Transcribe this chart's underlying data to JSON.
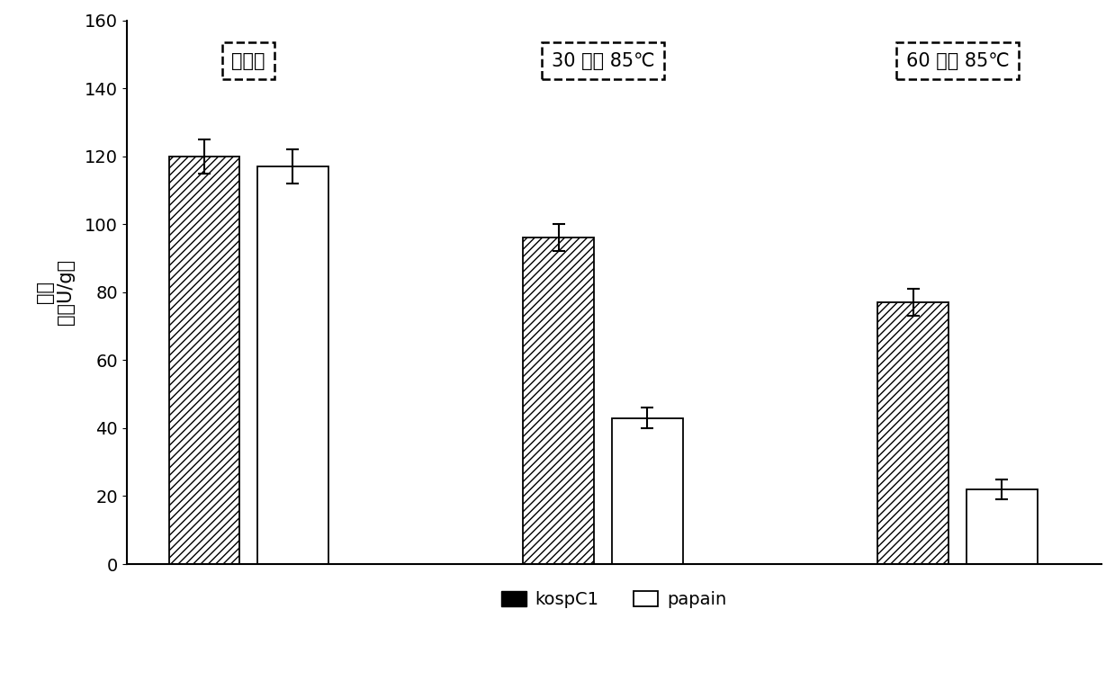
{
  "groups": [
    "未加热",
    "30 分钟 85℃",
    "60 分钟 85℃"
  ],
  "ylabel_parts": [
    "酶活（万U/g）"
  ],
  "ylabel_line1": "酶活",
  "ylabel_line2": "（万U/g）",
  "kospC1_values": [
    120,
    96,
    77
  ],
  "papain_values": [
    117,
    43,
    22
  ],
  "kospC1_errors": [
    5,
    4,
    4
  ],
  "papain_errors": [
    5,
    3,
    3
  ],
  "ylim": [
    0,
    160
  ],
  "yticks": [
    0,
    20,
    40,
    60,
    80,
    100,
    120,
    140,
    160
  ],
  "bar_width": 0.32,
  "group_positions": [
    1.0,
    2.6,
    4.2
  ],
  "label_kospC1": "kospC1",
  "label_papain": "papain",
  "hatch_pattern": "////",
  "bar_color_papain": "#ffffff",
  "bar_edgecolor": "#000000",
  "background_color": "#ffffff",
  "label_fontsize": 15,
  "tick_fontsize": 14,
  "legend_fontsize": 14,
  "annotation_fontsize": 15
}
